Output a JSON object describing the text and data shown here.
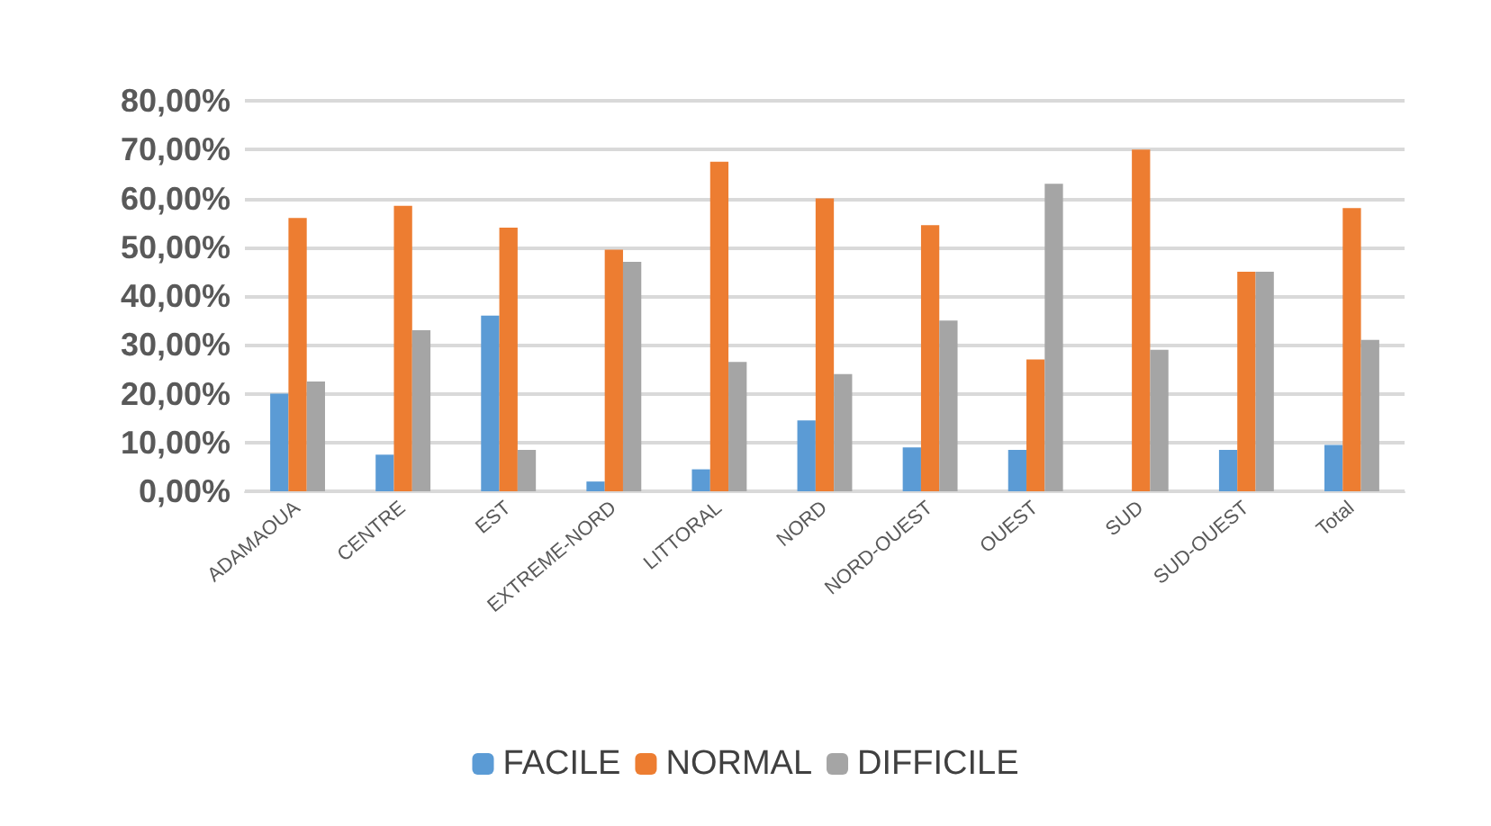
{
  "chart_data": {
    "type": "bar",
    "categories": [
      "ADAMAOUA",
      "CENTRE",
      "EST",
      "EXTREME-NORD",
      "LITTORAL",
      "NORD",
      "NORD-OUEST",
      "OUEST",
      "SUD",
      "SUD-OUEST",
      "Total"
    ],
    "series": [
      {
        "name": "FACILE",
        "color": "#5b9bd5",
        "values": [
          20,
          7.5,
          36,
          2,
          4.5,
          14.5,
          9,
          8.5,
          0,
          8.5,
          9.5
        ]
      },
      {
        "name": "NORMAL",
        "color": "#ed7d31",
        "values": [
          56,
          58.5,
          54,
          49.5,
          67.5,
          60,
          54.5,
          27,
          70,
          45,
          58
        ]
      },
      {
        "name": "DIFFICILE",
        "color": "#a5a5a5",
        "values": [
          22.5,
          33,
          8.5,
          47,
          26.5,
          24,
          35,
          63,
          29,
          45,
          31
        ]
      }
    ],
    "ylim": [
      0,
      80
    ],
    "yticks": [
      {
        "value": 0,
        "label": "0,00%"
      },
      {
        "value": 10,
        "label": "10,00%"
      },
      {
        "value": 20,
        "label": "20,00%"
      },
      {
        "value": 30,
        "label": "30,00%"
      },
      {
        "value": 40,
        "label": "40,00%"
      },
      {
        "value": 50,
        "label": "50,00%"
      },
      {
        "value": 60,
        "label": "60,00%"
      },
      {
        "value": 70,
        "label": "70,00%"
      },
      {
        "value": 80,
        "label": "80,00%"
      }
    ],
    "grid": "y",
    "legend": "bottom"
  }
}
